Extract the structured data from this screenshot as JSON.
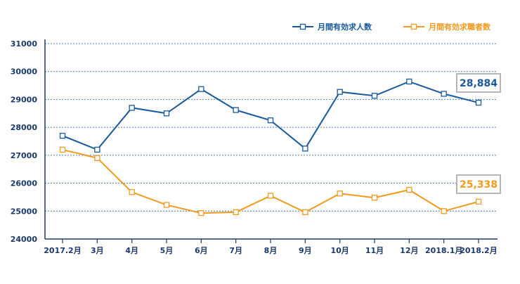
{
  "chart_data": {
    "type": "line",
    "categories": [
      "2017.2月",
      "3月",
      "4月",
      "5月",
      "6月",
      "7月",
      "8月",
      "9月",
      "10月",
      "11月",
      "12月",
      "2018.1月",
      "2018.2月"
    ],
    "series": [
      {
        "name": "月間有効求人数",
        "color": "#1a5a9c",
        "values": [
          27700,
          27200,
          28700,
          28500,
          29370,
          28620,
          28250,
          27240,
          29270,
          29130,
          29640,
          29200,
          28884
        ],
        "callout": "28,884"
      },
      {
        "name": "月間有効求職者数",
        "color": "#f39a1f",
        "values": [
          27200,
          26900,
          25680,
          25220,
          24930,
          24960,
          25550,
          24960,
          25630,
          25480,
          25760,
          25000,
          25338
        ],
        "callout": "25,338"
      }
    ],
    "ylim": [
      24000,
      31000
    ],
    "yticks": [
      24000,
      25000,
      26000,
      27000,
      28000,
      29000,
      30000,
      31000
    ],
    "grid": true,
    "legend_position": "top-right",
    "title": "",
    "xlabel": "",
    "ylabel": ""
  }
}
